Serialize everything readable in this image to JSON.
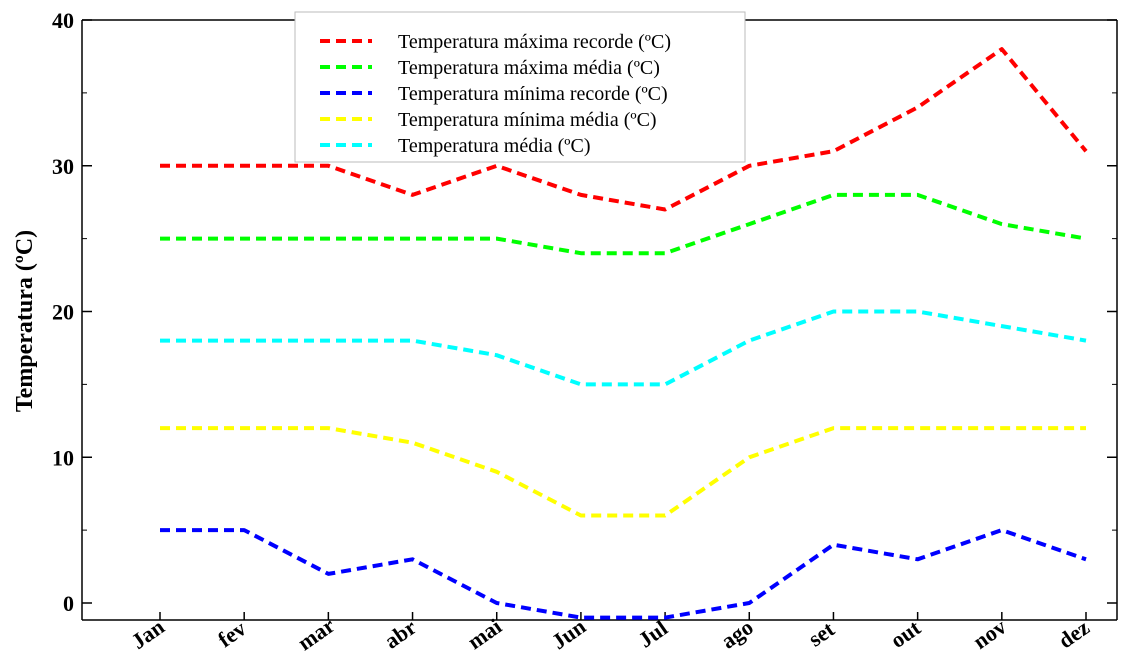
{
  "chart_data": {
    "type": "line",
    "ylabel": "Temperatura (ºC)",
    "xlabel": "",
    "categories": [
      "Jan",
      "fev",
      "mar",
      "abr",
      "mai",
      "Jun",
      "Jul",
      "ago",
      "set",
      "out",
      "nov",
      "dez"
    ],
    "ylim": [
      -1,
      40
    ],
    "yticks": [
      0,
      10,
      20,
      30,
      40
    ],
    "legend_position": "top-center",
    "line_style": "dashed",
    "grid": false,
    "series": [
      {
        "name": "Temperatura máxima recorde (ºC)",
        "color": "#ff0000",
        "values": [
          30,
          30,
          30,
          28,
          30,
          28,
          27,
          30,
          31,
          34,
          38,
          31
        ]
      },
      {
        "name": "Temperatura máxima média (ºC)",
        "color": "#00ff00",
        "values": [
          25,
          25,
          25,
          25,
          25,
          24,
          24,
          26,
          28,
          28,
          26,
          25
        ]
      },
      {
        "name": "Temperatura mínima recorde (ºC)",
        "color": "#0000ff",
        "values": [
          5,
          5,
          2,
          3,
          0,
          -1,
          -1,
          0,
          4,
          3,
          5,
          3
        ]
      },
      {
        "name": "Temperatura mínima média (ºC)",
        "color": "#ffff00",
        "values": [
          12,
          12,
          12,
          11,
          9,
          6,
          6,
          10,
          12,
          12,
          12,
          12
        ]
      },
      {
        "name": "Temperatura média (ºC)",
        "color": "#00ffff",
        "values": [
          18,
          18,
          18,
          18,
          17,
          15,
          15,
          18,
          20,
          20,
          19,
          18
        ]
      }
    ]
  }
}
